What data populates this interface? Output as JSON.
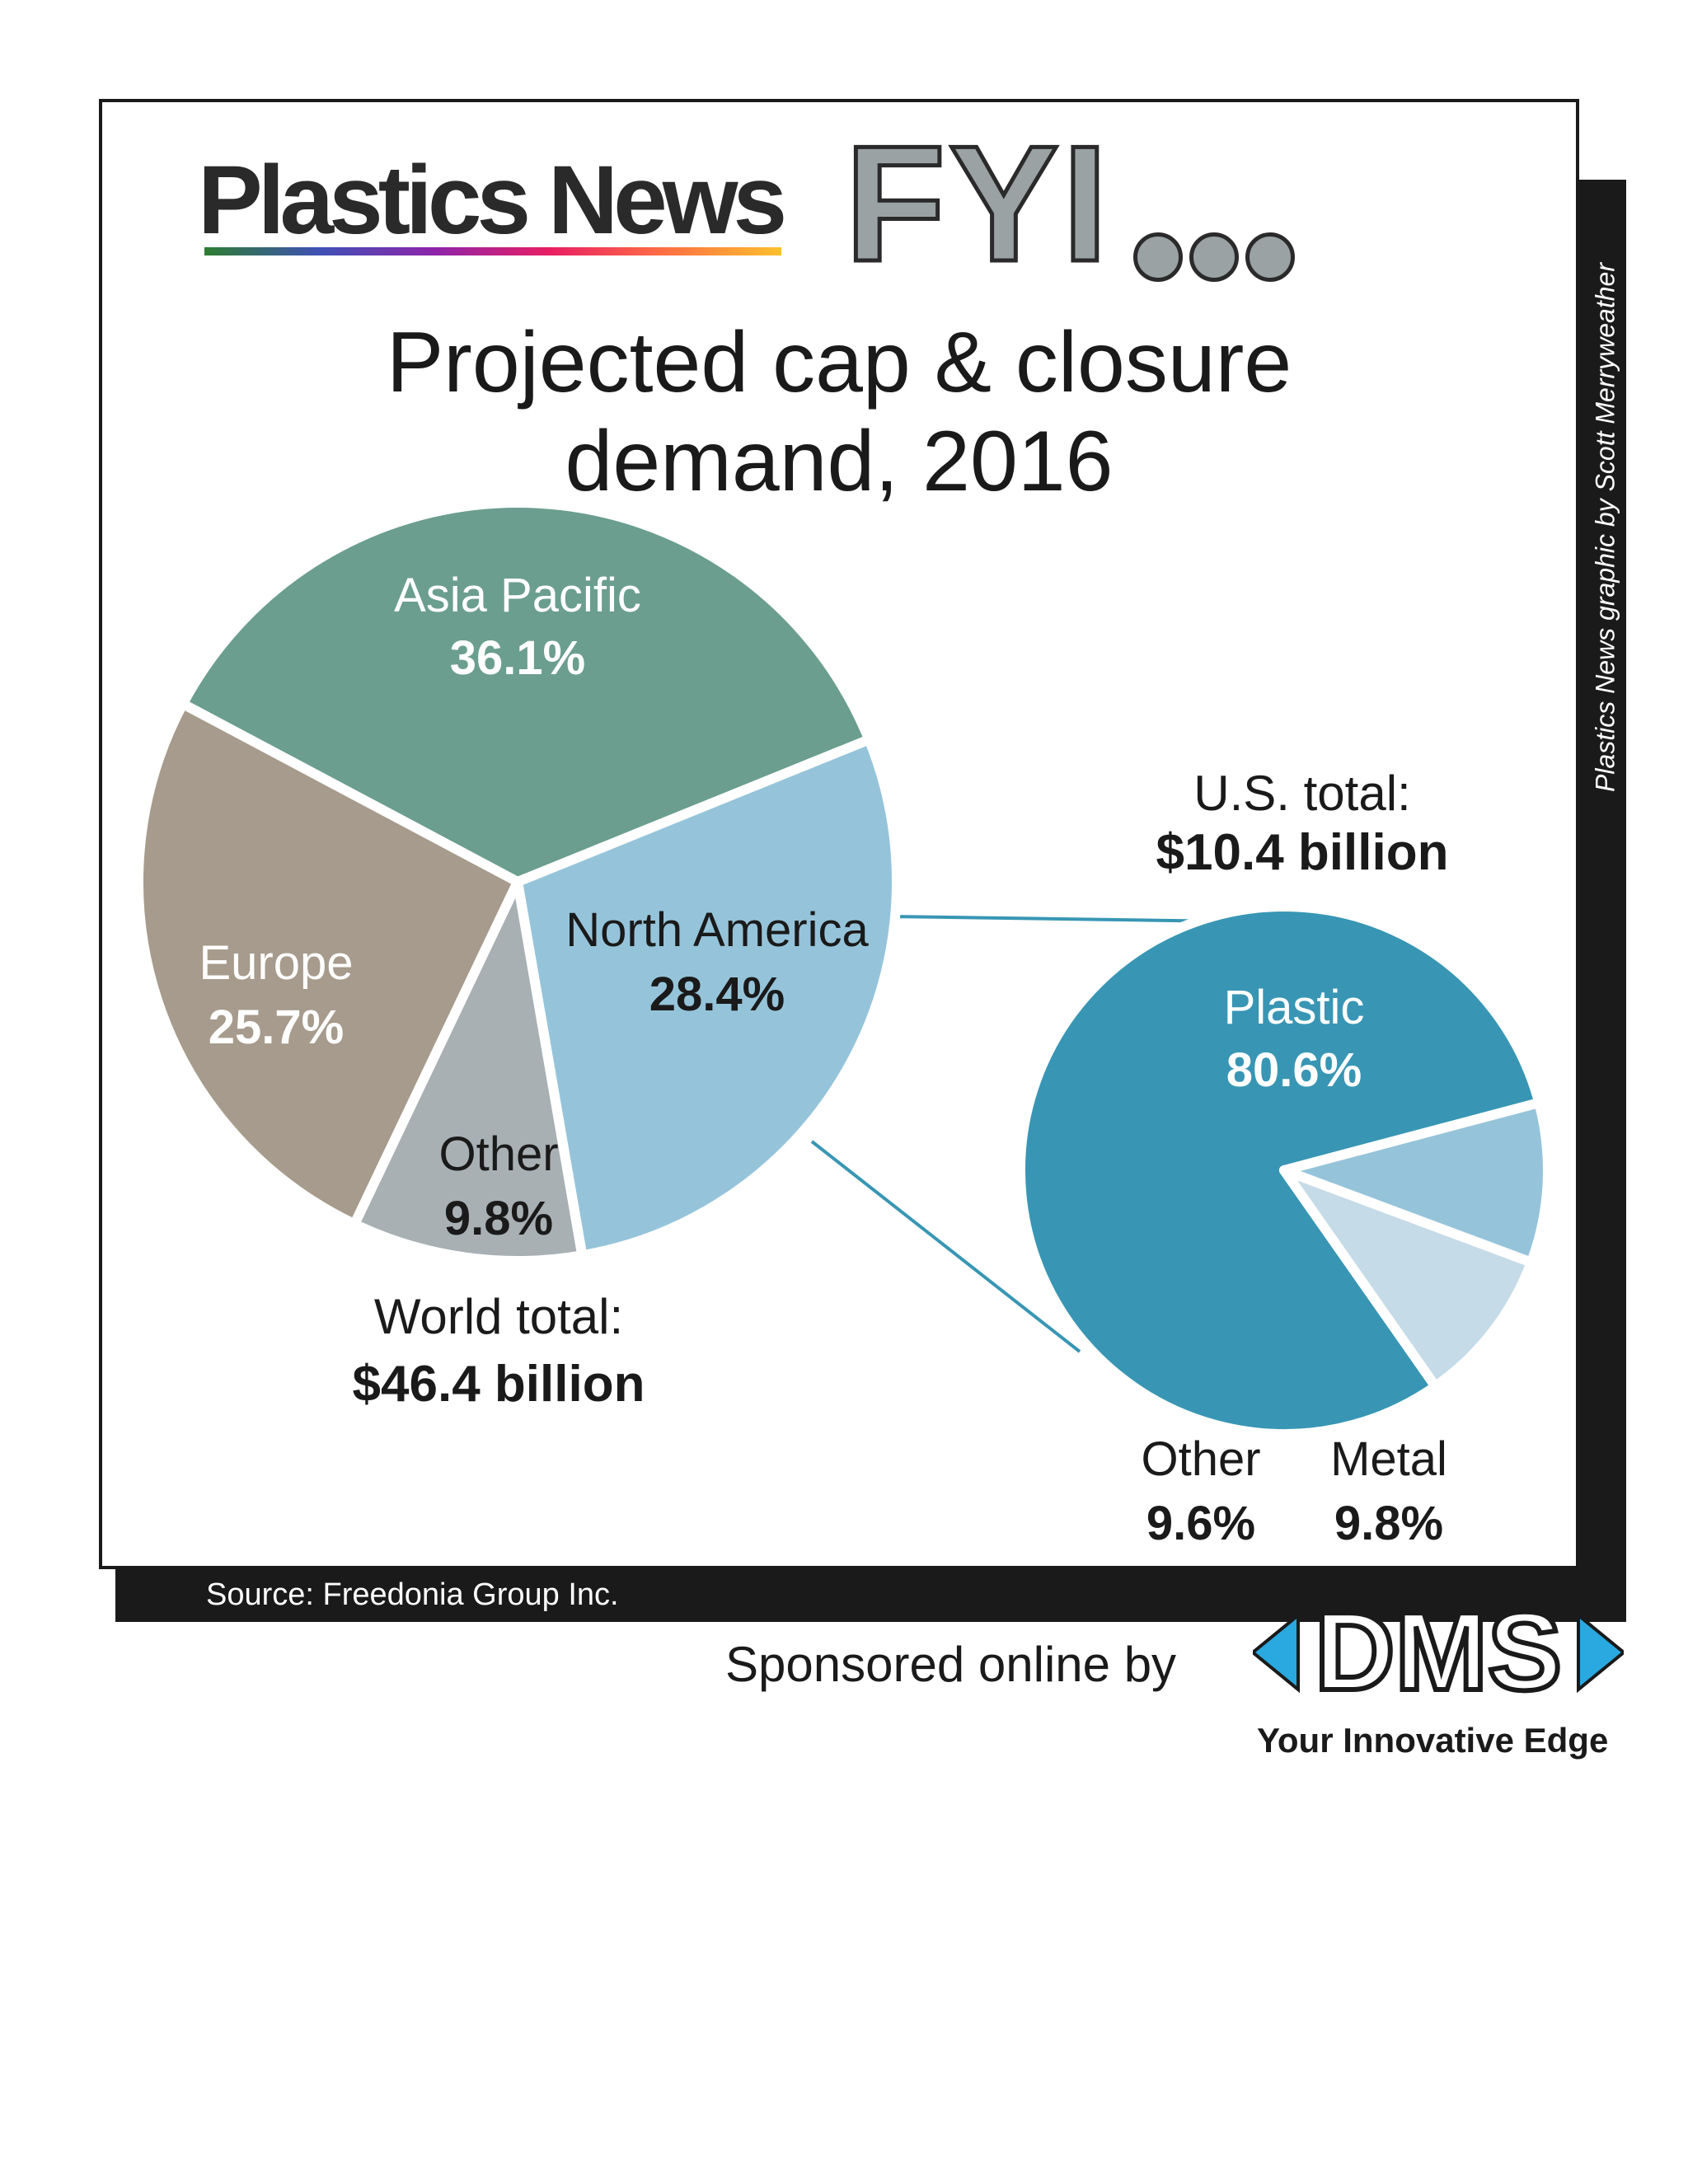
{
  "header": {
    "brand": "Plastics News",
    "tagline_big": "FYI",
    "tagline_dots": "..."
  },
  "title_line1": "Projected cap & closure",
  "title_line2": "demand, 2016",
  "credit": "Plastics News graphic by Scott Merryweather",
  "chart_data": [
    {
      "type": "pie",
      "categories": [
        "Asia Pacific",
        "North America",
        "Other",
        "Europe"
      ],
      "values": [
        36.1,
        28.4,
        9.8,
        25.7
      ],
      "colors": [
        "#6b9e8f",
        "#95c4da",
        "#a8b0b4",
        "#a69b8c"
      ],
      "value_labels": [
        "36.1%",
        "28.4%",
        "9.8%",
        "25.7%"
      ],
      "total_label": "World total:",
      "total_value": "$46.4 billion"
    },
    {
      "type": "pie",
      "categories": [
        "Plastic",
        "Metal",
        "Other"
      ],
      "values": [
        80.6,
        9.8,
        9.6
      ],
      "colors": [
        "#3896b4",
        "#95c4da",
        "#c5dbe7"
      ],
      "value_labels": [
        "80.6%",
        "9.8%",
        "9.6%"
      ],
      "total_label": "U.S. total:",
      "total_value": "$10.4 billion"
    }
  ],
  "source": "Source: Freedonia Group Inc.",
  "sponsor": "Sponsored online by",
  "sponsor_logo": "DMS",
  "sponsor_tagline": "Your Innovative Edge"
}
